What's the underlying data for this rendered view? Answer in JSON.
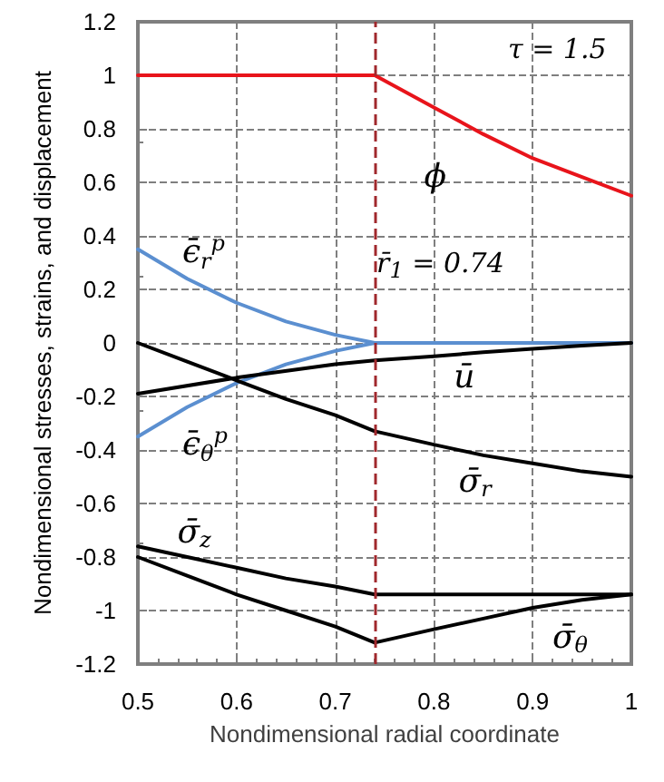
{
  "chart_data": {
    "type": "line",
    "xlabel": "Nondimensional radial coordinate",
    "ylabel": "Nondimensional stresses, strains, and displacement",
    "annotations": [
      "τ = 1.5"
    ],
    "xlim": [
      0.5,
      1
    ],
    "xticks": [
      0.5,
      0.6,
      0.7,
      0.8,
      0.9,
      1
    ],
    "ylim": [
      -1.2,
      1.2
    ],
    "yticks": [
      -1.2,
      -1,
      -0.8,
      -0.6,
      -0.4,
      -0.2,
      0,
      0.2,
      0.4,
      0.6,
      0.8,
      1,
      1.2
    ],
    "grid": true,
    "legend": false,
    "marker": "none",
    "line_style": "solid",
    "ref_lines": [
      {
        "axis": "x",
        "value": 0.74,
        "label": "r̄$_{1}$ = 0.74",
        "color": "#a0282d",
        "line_style": "dashed"
      }
    ],
    "series": [
      {
        "name": "ϕ",
        "color": "#e8141b",
        "x": [
          0.5,
          0.6,
          0.7,
          0.74,
          0.8,
          0.85,
          0.9,
          0.95,
          1
        ],
        "values": [
          1,
          1,
          1,
          1,
          0.88,
          0.78,
          0.69,
          0.62,
          0.55
        ]
      },
      {
        "name": "ϵ̄$_{r}$$^{p}$",
        "color": "#5b8fd0",
        "x": [
          0.5,
          0.55,
          0.6,
          0.65,
          0.7,
          0.74,
          0.8,
          0.9,
          1
        ],
        "values": [
          0.35,
          0.24,
          0.15,
          0.08,
          0.03,
          0,
          0,
          0,
          0
        ]
      },
      {
        "name": "ϵ̄$_{θ}$$^{p}$",
        "color": "#5b8fd0",
        "x": [
          0.5,
          0.55,
          0.6,
          0.65,
          0.7,
          0.74
        ],
        "values": [
          -0.35,
          -0.24,
          -0.15,
          -0.08,
          -0.03,
          0
        ]
      },
      {
        "name": "ū",
        "color": "#000000",
        "x": [
          0.5,
          0.6,
          0.7,
          0.74,
          0.8,
          0.85,
          0.9,
          0.95,
          1
        ],
        "values": [
          -0.19,
          -0.13,
          -0.08,
          -0.065,
          -0.05,
          -0.035,
          -0.022,
          -0.01,
          0
        ]
      },
      {
        "name": "σ̄$_{r}$",
        "color": "#000000",
        "x": [
          0.5,
          0.55,
          0.6,
          0.65,
          0.7,
          0.74,
          0.8,
          0.85,
          0.9,
          0.95,
          1
        ],
        "values": [
          0,
          -0.07,
          -0.14,
          -0.21,
          -0.27,
          -0.33,
          -0.38,
          -0.42,
          -0.45,
          -0.48,
          -0.5
        ]
      },
      {
        "name": "σ̄$_{z}$",
        "color": "#000000",
        "x": [
          0.5,
          0.55,
          0.6,
          0.65,
          0.7,
          0.74,
          0.8,
          0.9,
          1
        ],
        "values": [
          -0.76,
          -0.8,
          -0.84,
          -0.88,
          -0.91,
          -0.94,
          -0.94,
          -0.94,
          -0.94
        ]
      },
      {
        "name": "σ̄$_{θ}$",
        "color": "#000000",
        "x": [
          0.5,
          0.55,
          0.6,
          0.65,
          0.7,
          0.74,
          0.8,
          0.85,
          0.9,
          0.95,
          1
        ],
        "values": [
          -0.8,
          -0.87,
          -0.94,
          -1.0,
          -1.06,
          -1.12,
          -1.07,
          -1.03,
          -0.99,
          -0.96,
          -0.94
        ]
      }
    ]
  }
}
